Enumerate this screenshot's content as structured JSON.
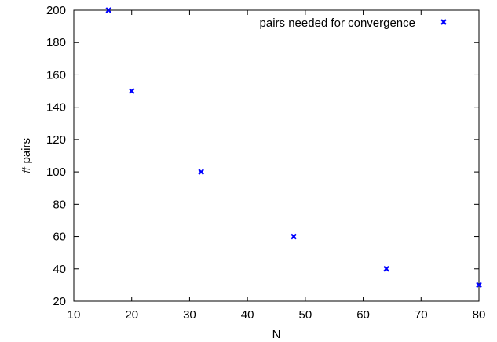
{
  "chart_data": {
    "type": "scatter",
    "title": "",
    "xlabel": "N",
    "ylabel": "# pairs",
    "xlim": [
      10,
      80
    ],
    "ylim": [
      20,
      200
    ],
    "xticks": [
      10,
      20,
      30,
      40,
      50,
      60,
      70,
      80
    ],
    "yticks": [
      20,
      40,
      60,
      80,
      100,
      120,
      140,
      160,
      180,
      200
    ],
    "grid": false,
    "legend_position": "top-right",
    "series": [
      {
        "name": "pairs needed for convergence",
        "color": "#0000ff",
        "marker": "x",
        "points": [
          {
            "x": 16,
            "y": 200
          },
          {
            "x": 20,
            "y": 150
          },
          {
            "x": 32,
            "y": 100
          },
          {
            "x": 48,
            "y": 60
          },
          {
            "x": 64,
            "y": 40
          },
          {
            "x": 80,
            "y": 30
          }
        ]
      }
    ]
  }
}
